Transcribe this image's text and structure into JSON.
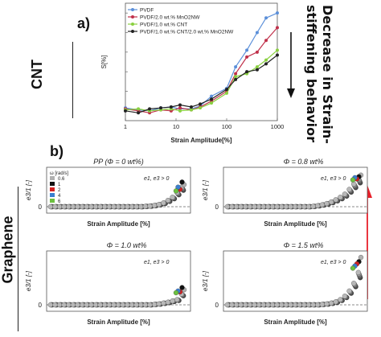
{
  "figure": {
    "panel_a_label": "a)",
    "panel_b_label": "b)",
    "cnt_label": "CNT",
    "graphene_label": "Graphene",
    "decrease_line1": "Decrease in Strain-",
    "decrease_line2": "stiffening behavior",
    "arrow_color": "#e8202a"
  },
  "chart_data": [
    {
      "type": "line",
      "title": "",
      "xlabel": "Strain Amplitude[%]",
      "ylabel": "S[%]",
      "xscale": "log",
      "xlim": [
        1,
        1000
      ],
      "ylim": [
        -10,
        110
      ],
      "xticks": [
        1,
        10,
        100,
        1000
      ],
      "xtick_labels": [
        "1",
        "10",
        "100",
        "1000"
      ],
      "legend_position": "top-left",
      "series": [
        {
          "name": "PVDF",
          "color": "#5b8fd9",
          "x": [
            1,
            1.8,
            3,
            5,
            8,
            12,
            20,
            30,
            50,
            100,
            150,
            250,
            400,
            600,
            1000
          ],
          "y": [
            3,
            1,
            0,
            3,
            4,
            2,
            2,
            5,
            15,
            23,
            45,
            62,
            80,
            95,
            100
          ]
        },
        {
          "name": "PVDF/2.0 wt.% MnO2NW",
          "color": "#c0304a",
          "x": [
            1,
            1.8,
            3,
            5,
            8,
            12,
            20,
            30,
            50,
            100,
            150,
            250,
            400,
            600,
            1000
          ],
          "y": [
            2,
            0,
            -2,
            1,
            0,
            3,
            1,
            4,
            10,
            20,
            38,
            55,
            60,
            72,
            85
          ]
        },
        {
          "name": "PVDF/1.0 wt.% CNT",
          "color": "#8ad040",
          "x": [
            1,
            1.8,
            3,
            5,
            8,
            12,
            20,
            30,
            50,
            100,
            150,
            250,
            400,
            600,
            1000
          ],
          "y": [
            1,
            2,
            0,
            1,
            2,
            0,
            1,
            3,
            8,
            18,
            35,
            38,
            45,
            52,
            62
          ]
        },
        {
          "name": "PVDF/1.0 wt.% CNT/2.0 wt.% MnO2NW",
          "color": "#222222",
          "x": [
            1,
            1.8,
            3,
            5,
            8,
            12,
            20,
            30,
            50,
            100,
            150,
            250,
            400,
            600,
            1000
          ],
          "y": [
            0,
            -2,
            2,
            3,
            4,
            6,
            4,
            7,
            12,
            22,
            32,
            40,
            42,
            48,
            57
          ]
        }
      ]
    },
    {
      "type": "scatter",
      "title": "PP (Φ = 0 wt%)",
      "xlabel": "Strain Amplitude [%]",
      "ylabel": "e3/1 [-]",
      "ytick_labels": [
        "0"
      ],
      "annotation": "e1, e3 > 0",
      "legend_title": "ω [rad/s]",
      "legend_position": "top-left",
      "series": [
        {
          "name": "0.6",
          "color": "#b0b0b0"
        },
        {
          "name": "1",
          "color": "#111111"
        },
        {
          "name": "2",
          "color": "#d42020"
        },
        {
          "name": "4",
          "color": "#3a7fd0"
        },
        {
          "name": "6",
          "color": "#6cc040"
        }
      ],
      "y": [
        0,
        0,
        0,
        0,
        0,
        0,
        0,
        0,
        0,
        0,
        0,
        0,
        0,
        0,
        0,
        0,
        0,
        0,
        0,
        0,
        0,
        0.01,
        0.02,
        0.04,
        0.07,
        0.12,
        0.2,
        0.3,
        0.45,
        0.62
      ],
      "final_points_y": [
        0.7,
        0.78,
        0.55,
        0.62,
        0.5
      ]
    },
    {
      "type": "scatter",
      "title": "Φ = 0.8 wt%",
      "xlabel": "Strain Amplitude [%]",
      "ylabel": "e3/1 [-]",
      "ytick_labels": [
        "0"
      ],
      "annotation": "e1, e3 > 0",
      "y": [
        0,
        0,
        0,
        0,
        0,
        0,
        0,
        0,
        0,
        0,
        0,
        0,
        0,
        0,
        0,
        0,
        0,
        0,
        0,
        0.01,
        0.03,
        0.06,
        0.1,
        0.15,
        0.22,
        0.3,
        0.4,
        0.55,
        0.72,
        0.9
      ],
      "final_points_y": [
        1.0,
        0.95,
        0.88,
        0.92,
        0.85
      ]
    },
    {
      "type": "scatter",
      "title": "Φ = 1.0 wt%",
      "xlabel": "Strain Amplitude [%]",
      "ylabel": "e3/1 [-]",
      "ytick_labels": [
        "0"
      ],
      "annotation": "e1, e3 > 0",
      "y": [
        0,
        0,
        0,
        0,
        0,
        0,
        0,
        0,
        0,
        0,
        0,
        0,
        0,
        0,
        0,
        0,
        0,
        0,
        0,
        0,
        0,
        0,
        0,
        0.01,
        0.02,
        0.04,
        0.06,
        0.09,
        0.12,
        0.25
      ],
      "final_points_y": [
        0.35,
        0.4,
        0.3,
        0.32,
        0.28
      ]
    },
    {
      "type": "scatter",
      "title": "Φ = 1.5 wt%",
      "xlabel": "Strain Amplitude [%]",
      "ylabel": "e3/1 [-]",
      "ytick_labels": [
        "0"
      ],
      "annotation": "e1, e3 > 0",
      "y": [
        0,
        0,
        0,
        0,
        0,
        0,
        0,
        0,
        0,
        0,
        0,
        0,
        0,
        0,
        0,
        0,
        0,
        0,
        0,
        0,
        0,
        0.01,
        0.02,
        0.04,
        0.07,
        0.12,
        0.2,
        0.32,
        0.5,
        0.75
      ],
      "final_points_y": [
        1.1,
        1.0,
        0.95,
        0.9,
        0.85
      ]
    }
  ]
}
